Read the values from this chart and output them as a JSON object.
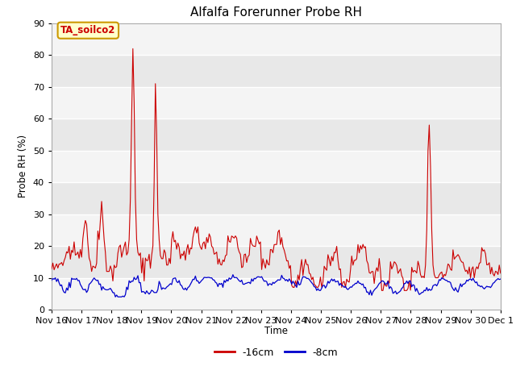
{
  "title": "Alfalfa Forerunner Probe RH",
  "ylabel": "Probe RH (%)",
  "xlabel": "Time",
  "annotation": "TA_soilco2",
  "ylim": [
    0,
    90
  ],
  "yticks": [
    0,
    10,
    20,
    30,
    40,
    50,
    60,
    70,
    80,
    90
  ],
  "xtick_labels": [
    "Nov 16",
    "Nov 17",
    "Nov 18",
    "Nov 19",
    "Nov 20",
    "Nov 21",
    "Nov 22",
    "Nov 23",
    "Nov 24",
    "Nov 25",
    "Nov 26",
    "Nov 27",
    "Nov 28",
    "Nov 29",
    "Nov 30",
    "Dec 1"
  ],
  "line1_color": "#cc0000",
  "line2_color": "#0000cc",
  "line1_label": "-16cm",
  "line2_label": "-8cm",
  "plot_bg_color": "#e8e8e8",
  "band_color_light": "#f0f0f0",
  "band_color_dark": "#e0e0e0",
  "title_fontsize": 11,
  "annotation_fontcolor": "#cc0000",
  "annotation_bg": "#ffffcc",
  "annotation_border": "#cc9900",
  "n_days": 15
}
